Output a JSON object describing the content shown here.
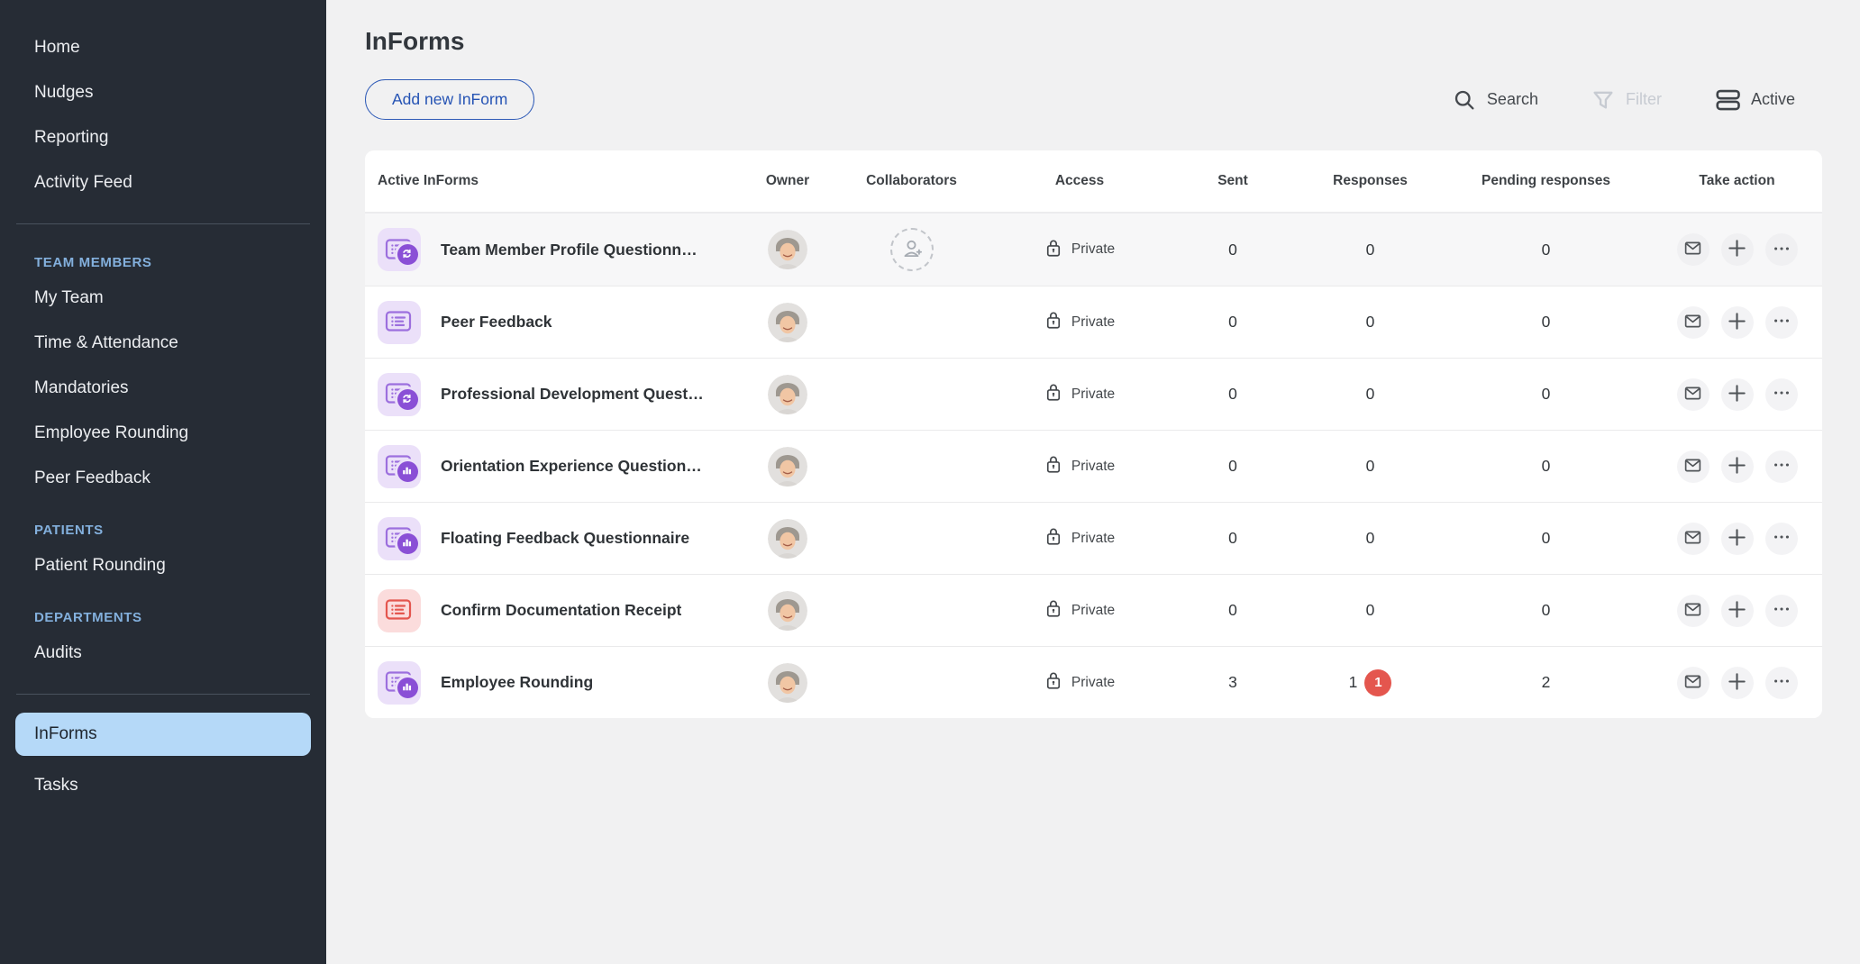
{
  "sidebar": {
    "primary_items": [
      {
        "label": "Home"
      },
      {
        "label": "Nudges"
      },
      {
        "label": "Reporting"
      },
      {
        "label": "Activity Feed"
      }
    ],
    "sections": [
      {
        "label": "TEAM MEMBERS",
        "items": [
          "My Team",
          "Time & Attendance",
          "Mandatories",
          "Employee Rounding",
          "Peer Feedback"
        ]
      },
      {
        "label": "PATIENTS",
        "items": [
          "Patient Rounding"
        ]
      },
      {
        "label": "DEPARTMENTS",
        "items": [
          "Audits"
        ]
      }
    ],
    "bottom_items": [
      {
        "label": "InForms",
        "active": true
      },
      {
        "label": "Tasks",
        "active": false
      }
    ]
  },
  "header": {
    "title": "InForms",
    "add_button_label": "Add new InForm"
  },
  "toolbar": {
    "search_label": "Search",
    "filter_label": "Filter",
    "view_label": "Active"
  },
  "table": {
    "columns": [
      "Active InForms",
      "Owner",
      "Collaborators",
      "Access",
      "Sent",
      "Responses",
      "Pending responses",
      "Take action"
    ],
    "rows": [
      {
        "title": "Team Member Profile Questionn…",
        "tile": "purple",
        "badge": "recurring",
        "add_collaborator": true,
        "access": "Private",
        "sent": "0",
        "responses": "0",
        "responses_badge": "",
        "pending": "0"
      },
      {
        "title": "Peer Feedback",
        "tile": "purple",
        "badge": "none",
        "add_collaborator": false,
        "access": "Private",
        "sent": "0",
        "responses": "0",
        "responses_badge": "",
        "pending": "0"
      },
      {
        "title": "Professional Development Quest…",
        "tile": "purple",
        "badge": "recurring",
        "add_collaborator": false,
        "access": "Private",
        "sent": "0",
        "responses": "0",
        "responses_badge": "",
        "pending": "0"
      },
      {
        "title": "Orientation Experience Question…",
        "tile": "purple",
        "badge": "chart",
        "add_collaborator": false,
        "access": "Private",
        "sent": "0",
        "responses": "0",
        "responses_badge": "",
        "pending": "0"
      },
      {
        "title": "Floating Feedback Questionnaire",
        "tile": "purple",
        "badge": "chart",
        "add_collaborator": false,
        "access": "Private",
        "sent": "0",
        "responses": "0",
        "responses_badge": "",
        "pending": "0"
      },
      {
        "title": "Confirm Documentation Receipt",
        "tile": "red",
        "badge": "none",
        "add_collaborator": false,
        "access": "Private",
        "sent": "0",
        "responses": "0",
        "responses_badge": "",
        "pending": "0"
      },
      {
        "title": "Employee Rounding",
        "tile": "purple",
        "badge": "chart",
        "add_collaborator": false,
        "access": "Private",
        "sent": "3",
        "responses": "1",
        "responses_badge": "1",
        "pending": "2"
      }
    ]
  },
  "colors": {
    "sidebar_bg": "#262c35",
    "sidebar_section_label": "#83b0dd",
    "active_item_bg": "#b5d9f8",
    "accent_blue": "#2f5bb7",
    "tile_purple_bg": "#ebe0f9",
    "tile_purple_icon": "#9c6fde",
    "tile_badge_purple": "#8a4fd6",
    "tile_red_bg": "#fbdcdc",
    "tile_red_icon": "#e4564e",
    "responses_badge_red": "#e4564e",
    "main_bg": "#f1f1f2",
    "row_highlight_bg": "#f7f7f8"
  }
}
